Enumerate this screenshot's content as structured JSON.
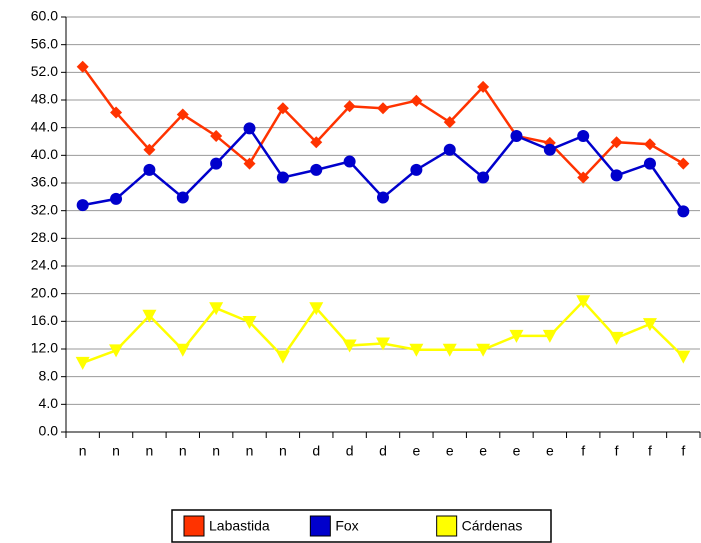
{
  "chart_data": {
    "type": "line",
    "categories": [
      "n",
      "n",
      "n",
      "n",
      "n",
      "n",
      "n",
      "d",
      "d",
      "d",
      "e",
      "e",
      "e",
      "e",
      "e",
      "f",
      "f",
      "f",
      "f"
    ],
    "series": [
      {
        "name": "Labastida",
        "color": "#ff3300",
        "marker": "diamond",
        "values": [
          52.8,
          46.2,
          40.8,
          45.9,
          42.8,
          38.8,
          46.8,
          41.9,
          47.1,
          46.8,
          47.9,
          44.8,
          49.9,
          42.8,
          41.8,
          36.8,
          41.9,
          41.6,
          38.8
        ]
      },
      {
        "name": "Fox",
        "color": "#0000cc",
        "marker": "circle",
        "values": [
          32.8,
          33.7,
          37.9,
          33.9,
          38.8,
          43.9,
          36.8,
          37.9,
          39.1,
          33.9,
          37.9,
          40.8,
          36.8,
          42.8,
          40.8,
          42.8,
          37.1,
          38.8,
          31.9
        ]
      },
      {
        "name": "Cárdenas",
        "color": "#ffff00",
        "marker": "triangle-down",
        "values": [
          10.0,
          11.8,
          16.8,
          11.9,
          17.9,
          15.9,
          10.9,
          17.9,
          12.5,
          12.8,
          11.9,
          11.9,
          11.9,
          13.9,
          13.9,
          18.9,
          13.6,
          15.6,
          10.9
        ]
      }
    ],
    "ylim": [
      0,
      60
    ],
    "yticks": [
      {
        "value": 0,
        "label": "0.0"
      },
      {
        "value": 4,
        "label": "4.0"
      },
      {
        "value": 8,
        "label": "8.0"
      },
      {
        "value": 12,
        "label": "12.0"
      },
      {
        "value": 16,
        "label": "16.0"
      },
      {
        "value": 20,
        "label": "20.0"
      },
      {
        "value": 24,
        "label": "24.0"
      },
      {
        "value": 28,
        "label": "28.0"
      },
      {
        "value": 32,
        "label": "32.0"
      },
      {
        "value": 36,
        "label": "36.0"
      },
      {
        "value": 40,
        "label": "40.0"
      },
      {
        "value": 44,
        "label": "44.0"
      },
      {
        "value": 48,
        "label": "48.0"
      },
      {
        "value": 52,
        "label": "52.0"
      },
      {
        "value": 56,
        "label": "56.0"
      },
      {
        "value": 60,
        "label": "60.0"
      }
    ],
    "grid": true,
    "legend": "bottom"
  }
}
